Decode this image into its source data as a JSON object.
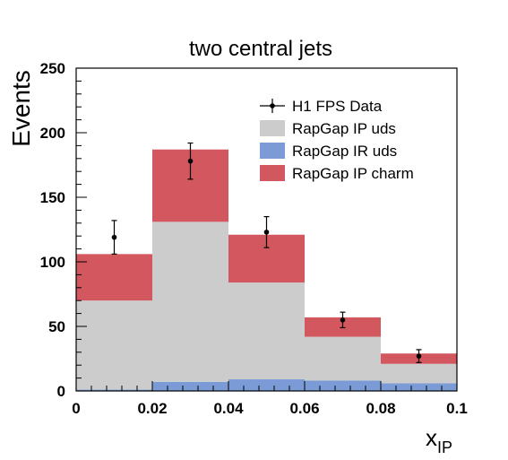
{
  "chart_data": {
    "type": "bar",
    "title": "two central jets",
    "ylabel": "Events",
    "xlabel": "x",
    "xlabel_subscript": "IP",
    "xlim": [
      0,
      0.1
    ],
    "ylim": [
      0,
      250
    ],
    "x_ticks": [
      "0",
      "0.02",
      "0.04",
      "0.06",
      "0.08",
      "0.1"
    ],
    "y_ticks": [
      "0",
      "50",
      "100",
      "150",
      "200",
      "250"
    ],
    "bin_edges": [
      0,
      0.02,
      0.04,
      0.06,
      0.08,
      0.1
    ],
    "stacked": true,
    "series": [
      {
        "name": "RapGap IR uds",
        "color": "#7b9bd6",
        "values": [
          1,
          7,
          9,
          8,
          6
        ]
      },
      {
        "name": "RapGap IP uds",
        "color": "#cccccc",
        "values": [
          69,
          124,
          75,
          34,
          15
        ]
      },
      {
        "name": "RapGap IP charm",
        "color": "#d3575f",
        "values": [
          36,
          56,
          37,
          15,
          8
        ]
      }
    ],
    "data_points": {
      "name": "H1 FPS Data",
      "x": [
        0.01,
        0.03,
        0.05,
        0.07,
        0.09
      ],
      "y": [
        119,
        178,
        123,
        55,
        27
      ],
      "err_up": [
        13,
        14,
        12,
        6,
        5
      ],
      "err_down": [
        13,
        14,
        12,
        6,
        5
      ]
    },
    "legend": {
      "position": "top-right",
      "entries": [
        {
          "label": "H1 FPS Data",
          "kind": "marker"
        },
        {
          "label": "RapGap IP uds",
          "kind": "box",
          "color": "#cccccc"
        },
        {
          "label": "RapGap IR uds",
          "kind": "box",
          "color": "#7b9bd6"
        },
        {
          "label": "RapGap IP charm",
          "kind": "box",
          "color": "#d3575f"
        }
      ]
    }
  }
}
